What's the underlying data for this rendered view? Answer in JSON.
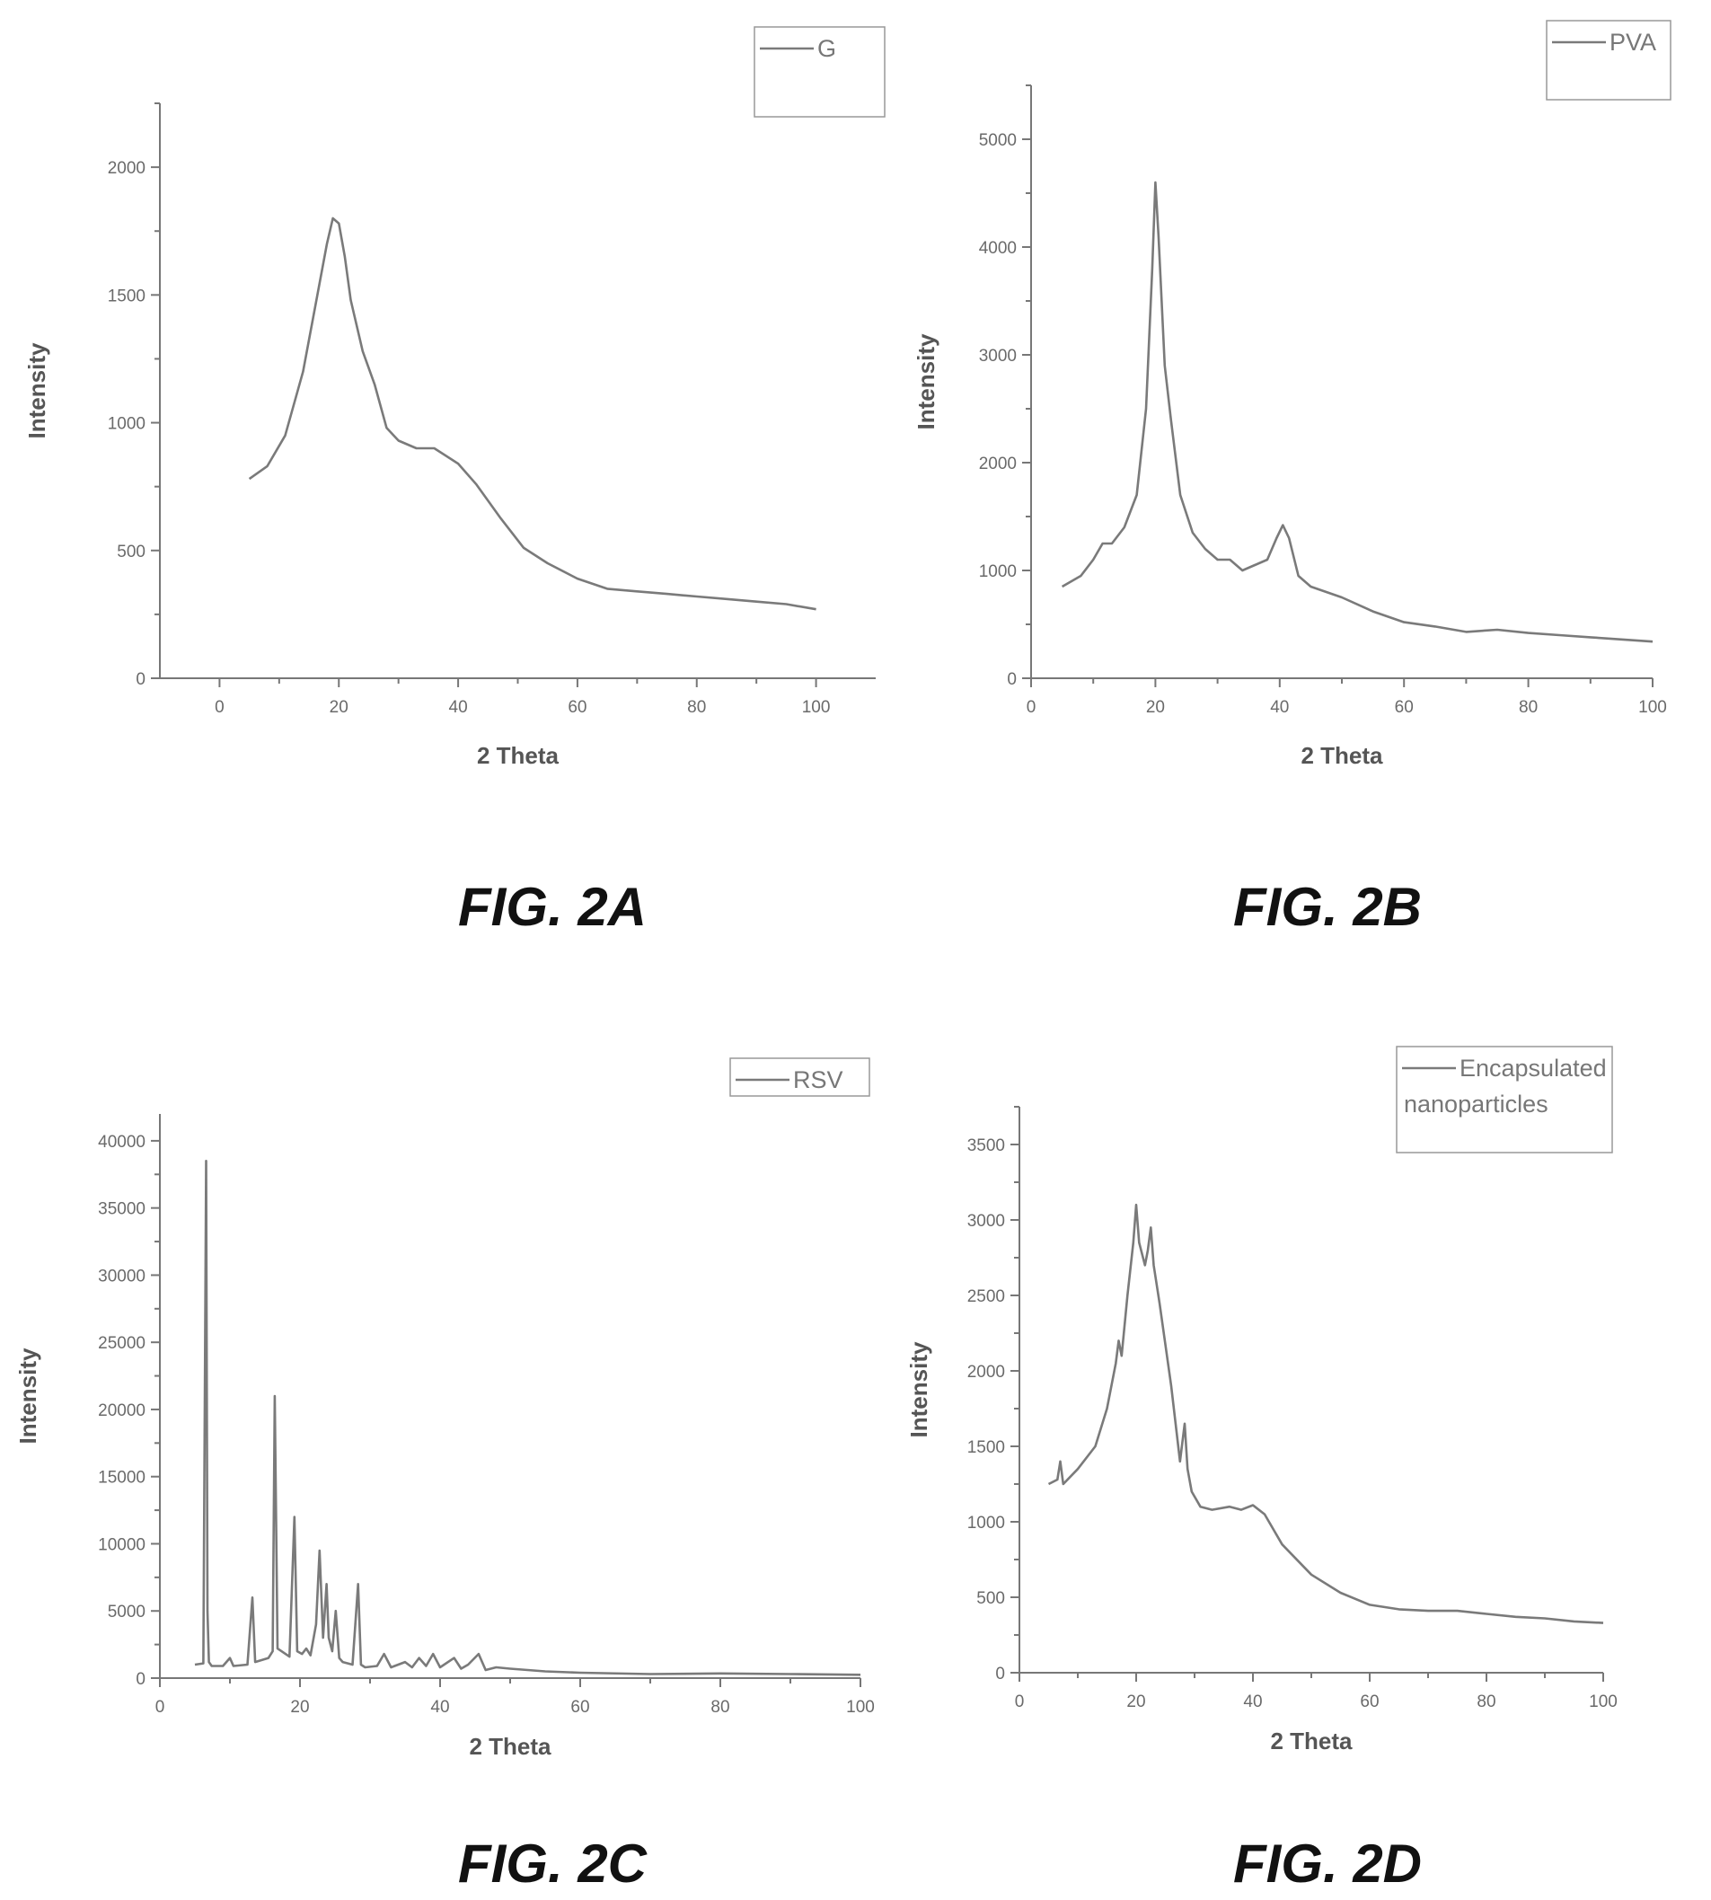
{
  "chart_data": [
    {
      "type": "line",
      "caption": "FIG. 2A",
      "xlabel": "2 Theta",
      "ylabel": "Intensity",
      "xlim": [
        -10,
        110
      ],
      "ylim": [
        0,
        2250
      ],
      "xticks": [
        0,
        20,
        40,
        60,
        80,
        100
      ],
      "yticks": [
        0,
        500,
        1000,
        1500,
        2000
      ],
      "legend": [
        "G"
      ],
      "legend_position": "top-right",
      "grid": false,
      "series": [
        {
          "name": "G",
          "x": [
            5,
            8,
            11,
            14,
            16,
            18,
            19,
            20,
            21,
            22,
            24,
            26,
            28,
            30,
            33,
            36,
            40,
            43,
            47,
            51,
            55,
            60,
            65,
            70,
            75,
            80,
            85,
            90,
            95,
            100
          ],
          "y": [
            780,
            830,
            950,
            1200,
            1450,
            1700,
            1800,
            1780,
            1650,
            1480,
            1280,
            1150,
            980,
            930,
            900,
            900,
            840,
            760,
            630,
            510,
            450,
            390,
            350,
            340,
            330,
            320,
            310,
            300,
            290,
            270
          ]
        }
      ]
    },
    {
      "type": "line",
      "caption": "FIG. 2B",
      "xlabel": "2 Theta",
      "ylabel": "Intensity",
      "xlim": [
        0,
        100
      ],
      "ylim": [
        0,
        5500
      ],
      "xticks": [
        0,
        20,
        40,
        60,
        80,
        100
      ],
      "yticks": [
        0,
        1000,
        2000,
        3000,
        4000,
        5000
      ],
      "legend": [
        "PVA"
      ],
      "legend_position": "top-right",
      "grid": false,
      "series": [
        {
          "name": "PVA",
          "x": [
            5,
            8,
            10,
            11.5,
            13,
            15,
            17,
            18.5,
            19.5,
            20,
            20.5,
            21.5,
            22.5,
            24,
            26,
            28,
            30,
            32,
            34,
            36,
            38,
            39.5,
            40.5,
            41.5,
            43,
            45,
            50,
            55,
            60,
            65,
            70,
            75,
            80,
            85,
            90,
            95,
            100
          ],
          "y": [
            850,
            950,
            1100,
            1250,
            1250,
            1400,
            1700,
            2500,
            3800,
            4600,
            4100,
            2900,
            2400,
            1700,
            1350,
            1200,
            1100,
            1100,
            1000,
            1050,
            1100,
            1300,
            1420,
            1300,
            950,
            850,
            750,
            620,
            520,
            480,
            430,
            450,
            420,
            400,
            380,
            360,
            340
          ]
        }
      ]
    },
    {
      "type": "line",
      "caption": "FIG. 2C",
      "xlabel": "2 Theta",
      "ylabel": "Intensity",
      "xlim": [
        0,
        100
      ],
      "ylim": [
        0,
        42000
      ],
      "xticks": [
        0,
        20,
        40,
        60,
        80,
        100
      ],
      "yticks": [
        0,
        5000,
        10000,
        15000,
        20000,
        25000,
        30000,
        35000,
        40000
      ],
      "legend": [
        "RSV"
      ],
      "legend_position": "top-right",
      "grid": false,
      "series": [
        {
          "name": "RSV",
          "x": [
            5,
            6.2,
            6.6,
            6.8,
            7.0,
            7.4,
            9,
            10,
            10.5,
            12.5,
            13.2,
            13.6,
            15.5,
            16.1,
            16.4,
            16.8,
            18.5,
            19.2,
            19.6,
            20.3,
            20.9,
            21.5,
            22.3,
            22.8,
            23.3,
            23.8,
            24.1,
            24.6,
            25.1,
            25.6,
            26.1,
            27.5,
            28.3,
            28.7,
            29.3,
            31,
            32,
            33,
            35,
            36,
            37,
            38,
            39,
            40,
            42,
            43,
            44,
            45.5,
            46.5,
            48,
            50,
            55,
            60,
            70,
            80,
            90,
            100
          ],
          "y": [
            1000,
            1100,
            38500,
            5000,
            1200,
            900,
            900,
            1500,
            900,
            1000,
            6000,
            1200,
            1500,
            2000,
            21000,
            2200,
            1600,
            12000,
            2000,
            1800,
            2200,
            1700,
            4000,
            9500,
            3000,
            7000,
            3000,
            2000,
            5000,
            1500,
            1200,
            1000,
            7000,
            1000,
            800,
            900,
            1800,
            800,
            1200,
            800,
            1500,
            900,
            1800,
            800,
            1500,
            700,
            1000,
            1800,
            600,
            800,
            700,
            500,
            400,
            300,
            350,
            300,
            250
          ]
        }
      ]
    },
    {
      "type": "line",
      "caption": "FIG. 2D",
      "xlabel": "2 Theta",
      "ylabel": "Intensity",
      "xlim": [
        0,
        100
      ],
      "ylim": [
        0,
        3750
      ],
      "xticks": [
        0,
        20,
        40,
        60,
        80,
        100
      ],
      "yticks": [
        0,
        500,
        1000,
        1500,
        2000,
        2500,
        3000,
        3500
      ],
      "legend": [
        "Encapsulated nanoparticles"
      ],
      "legend_position": "top-right",
      "grid": false,
      "series": [
        {
          "name": "Encapsulated nanoparticles",
          "x": [
            5,
            6.5,
            7,
            7.5,
            10,
            13,
            15,
            16.5,
            17,
            17.5,
            18.5,
            19.5,
            20,
            20.5,
            21.5,
            22,
            22.5,
            23,
            24,
            26,
            27.5,
            28.3,
            28.8,
            29.5,
            31,
            33,
            36,
            38,
            40,
            42,
            45,
            50,
            55,
            60,
            65,
            70,
            75,
            80,
            85,
            90,
            95,
            100
          ],
          "y": [
            1250,
            1280,
            1400,
            1250,
            1350,
            1500,
            1750,
            2050,
            2200,
            2100,
            2500,
            2850,
            3100,
            2850,
            2700,
            2800,
            2950,
            2700,
            2450,
            1900,
            1400,
            1650,
            1350,
            1200,
            1100,
            1080,
            1100,
            1080,
            1110,
            1050,
            850,
            650,
            530,
            450,
            420,
            410,
            410,
            390,
            370,
            360,
            340,
            330
          ]
        }
      ]
    }
  ]
}
